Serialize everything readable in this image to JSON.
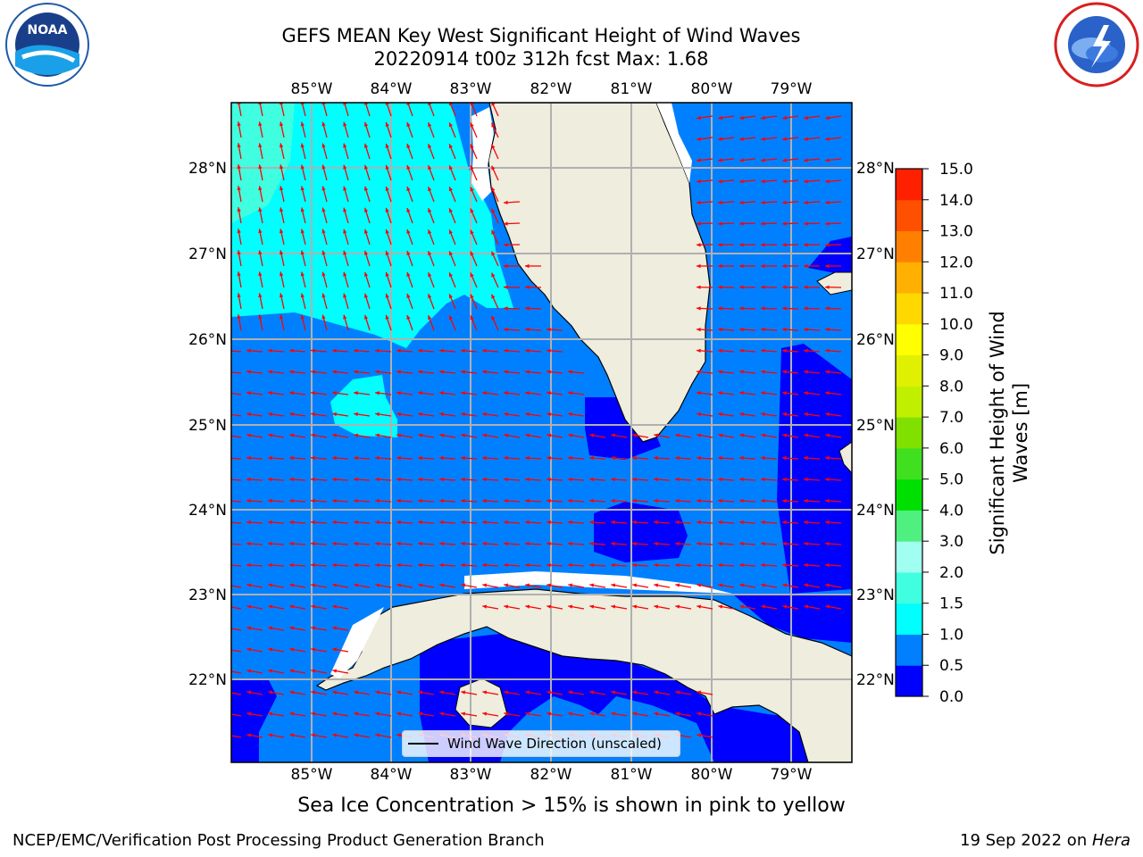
{
  "title": {
    "line1": "GEFS MEAN Key West Significant Height of Wind Waves",
    "line2": "20220914 t00z 312h fcst   Max: 1.68"
  },
  "map": {
    "lon_ticks": [
      "85°W",
      "84°W",
      "83°W",
      "82°W",
      "81°W",
      "80°W",
      "79°W"
    ],
    "lat_ticks": [
      "28°N",
      "27°N",
      "26°N",
      "25°N",
      "24°N",
      "23°N",
      "22°N"
    ],
    "legend_label": "Wind Wave Direction (unscaled)",
    "land_color": "#eeedde",
    "arrow_color": "#ff0000"
  },
  "colorbar": {
    "title_line1": "Significant Height of Wind",
    "title_line2": "Waves [m]",
    "levels": [
      "0.0",
      "0.5",
      "1.0",
      "1.5",
      "2.0",
      "3.0",
      "4.0",
      "5.0",
      "6.0",
      "7.0",
      "8.0",
      "9.0",
      "10.0",
      "11.0",
      "12.0",
      "13.0",
      "14.0",
      "15.0"
    ],
    "colors": [
      "#0000ff",
      "#0080ff",
      "#00ffff",
      "#40ffe0",
      "#a0fff0",
      "#50f080",
      "#00e000",
      "#40e020",
      "#80e000",
      "#c0f000",
      "#e0f000",
      "#ffff00",
      "#ffd800",
      "#ffb000",
      "#ff8000",
      "#ff5000",
      "#ff2000"
    ]
  },
  "subnote": "Sea Ice Concentration > 15% is shown in pink to yellow",
  "footer": {
    "left": "NCEP/EMC/Verification Post Processing Product Generation Branch",
    "right_prefix": "19 Sep 2022 on ",
    "right_host": "Hera"
  },
  "logos": {
    "noaa": "NOAA",
    "nws": "NATIONAL WEATHER SERVICE"
  }
}
